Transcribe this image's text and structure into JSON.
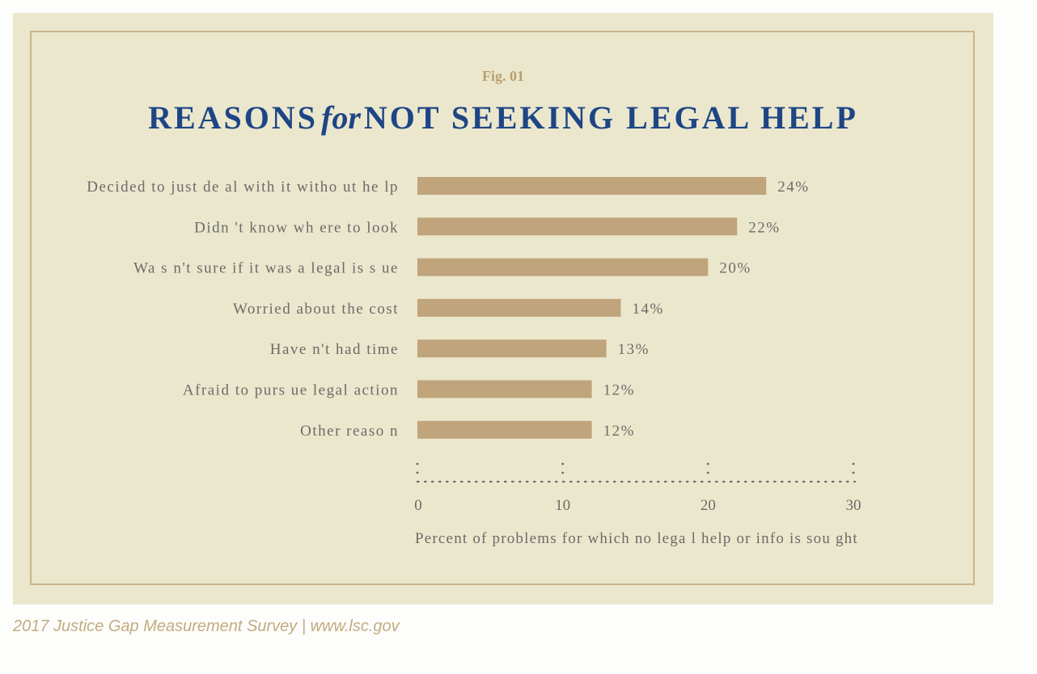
{
  "figure": {
    "label": "Fig. 01",
    "title_part1": "REASONS",
    "title_for": "for",
    "title_part2": "NOT SEEKING LEGAL HELP"
  },
  "source": "2017 Justice Gap Measurement Survey | www.lsc.gov",
  "colors": {
    "background": "#ebe7cd",
    "frame": "#c8b68a",
    "bar": "#c0a47b",
    "title": "#1e4585",
    "text": "#6b6b68"
  },
  "chart_data": {
    "type": "bar",
    "orientation": "horizontal",
    "categories": [
      "Decided to just de al with it witho ut he lp",
      "Didn 't know wh ere to look",
      "Wa s n't sure if it was a legal is s ue",
      "Worried about the cost",
      "Have n't had time",
      "Afraid to purs ue legal action",
      "Other reaso n"
    ],
    "values": [
      24,
      22,
      20,
      14,
      13,
      12,
      12
    ],
    "value_labels": [
      "24%",
      "22%",
      "20%",
      "14%",
      "13%",
      "12%",
      "12%"
    ],
    "xlim": [
      0,
      30
    ],
    "xticks": [
      0,
      10,
      20,
      30
    ],
    "xtick_labels": [
      "0",
      "10",
      "20",
      "30"
    ],
    "xlabel": "Percent of problems for which no lega l help or info is sou ght",
    "grid": false,
    "legend": "none"
  }
}
